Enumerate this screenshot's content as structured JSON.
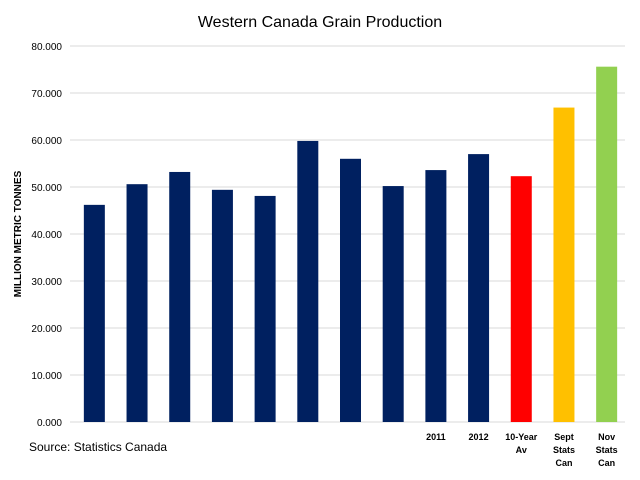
{
  "chart_data": {
    "type": "bar",
    "title": "Western Canada Grain Production",
    "ylabel": "MILLION METRIC TONNES",
    "source": "Source: Statistics Canada",
    "ylim": [
      0,
      80
    ],
    "yticks": [
      "0.000",
      "10.000",
      "20.000",
      "30.000",
      "40.000",
      "50.000",
      "60.000",
      "70.000",
      "80.000"
    ],
    "grid": true,
    "categories": [
      [
        ""
      ],
      [
        ""
      ],
      [
        ""
      ],
      [
        ""
      ],
      [
        ""
      ],
      [
        ""
      ],
      [
        ""
      ],
      [
        ""
      ],
      [
        "2011"
      ],
      [
        "2012"
      ],
      [
        "10-Year",
        "Av"
      ],
      [
        "Sept",
        "Stats",
        "Can"
      ],
      [
        "Nov",
        "Stats",
        "Can"
      ]
    ],
    "values": [
      46.2,
      50.6,
      53.2,
      49.4,
      48.1,
      59.8,
      56.0,
      50.2,
      53.6,
      57.0,
      52.3,
      66.9,
      75.6
    ],
    "colors": [
      "#002060",
      "#002060",
      "#002060",
      "#002060",
      "#002060",
      "#002060",
      "#002060",
      "#002060",
      "#002060",
      "#002060",
      "#ff0000",
      "#ffc000",
      "#92d050"
    ]
  }
}
